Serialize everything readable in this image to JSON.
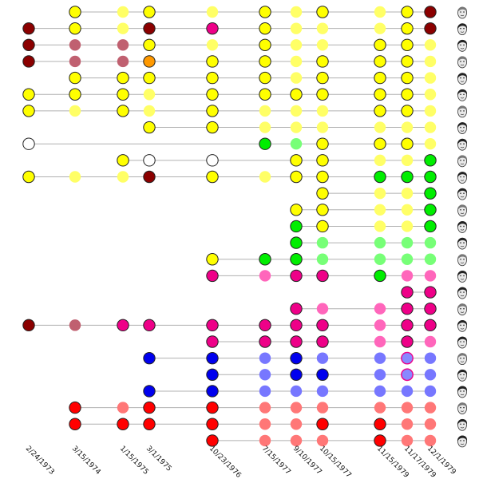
{
  "chart_data": {
    "type": "scatter",
    "dates": [
      "2/24/1973",
      "3/15/1974",
      "1/15/1975",
      "3/1/1975",
      "10/23/1976",
      "7/15/1977",
      "9/10/1977",
      "10/15/1977",
      "11/15/1979",
      "11/17/1979",
      "12/1/1979"
    ],
    "colors": {
      "Y": "#ffff00",
      "y": "#ffff66",
      "D": "#8b0000",
      "d": "#c06070",
      "O": "#ff9900",
      "W": "#ffffff",
      "G": "#00ee00",
      "g": "#77ff77",
      "M": "#ee0088",
      "m": "#ff66bb",
      "B": "#0000ee",
      "b": "#7777ff",
      "R": "#ff0000",
      "r": "#ff7777",
      "P": "#8888ff"
    },
    "outline_codes": [
      "Y",
      "D",
      "O",
      "W",
      "G",
      "M",
      "B",
      "R",
      "P"
    ],
    "rows": [
      [
        "-",
        "Y",
        "y",
        "Y",
        "y",
        "Y",
        "y",
        "Y",
        "y",
        "Y",
        "D"
      ],
      [
        "D",
        "Y",
        "y",
        "D",
        "M",
        "Y",
        "y",
        "y",
        "y",
        "Y",
        "D"
      ],
      [
        "D",
        "d",
        "d",
        "Y",
        "y",
        "Y",
        "y",
        "y",
        "Y",
        "Y",
        "y"
      ],
      [
        "D",
        "d",
        "d",
        "O",
        "Y",
        "Y",
        "y",
        "Y",
        "Y",
        "Y",
        "y"
      ],
      [
        "-",
        "Y",
        "Y",
        "Y",
        "Y",
        "Y",
        "y",
        "Y",
        "Y",
        "Y",
        "y"
      ],
      [
        "Y",
        "Y",
        "Y",
        "y",
        "Y",
        "Y",
        "Y",
        "Y",
        "Y",
        "Y",
        "y"
      ],
      [
        "Y",
        "y",
        "Y",
        "y",
        "Y",
        "y",
        "y",
        "y",
        "Y",
        "Y",
        "y"
      ],
      [
        "-",
        "-",
        "-",
        "Y",
        "Y",
        "y",
        "y",
        "y",
        "y",
        "y",
        "y"
      ],
      [
        "W",
        "-",
        "-",
        "-",
        "-",
        "G",
        "g",
        "Y",
        "Y",
        "Y",
        "y"
      ],
      [
        "-",
        "-",
        "Y",
        "W",
        "W",
        "-",
        "Y",
        "Y",
        "y",
        "y",
        "G"
      ],
      [
        "Y",
        "y",
        "y",
        "D",
        "Y",
        "y",
        "Y",
        "Y",
        "G",
        "G",
        "G"
      ],
      [
        "-",
        "-",
        "-",
        "-",
        "-",
        "-",
        "-",
        "Y",
        "y",
        "y",
        "G"
      ],
      [
        "-",
        "-",
        "-",
        "-",
        "-",
        "-",
        "Y",
        "Y",
        "y",
        "y",
        "G"
      ],
      [
        "-",
        "-",
        "-",
        "-",
        "-",
        "-",
        "G",
        "Y",
        "y",
        "y",
        "G"
      ],
      [
        "-",
        "-",
        "-",
        "-",
        "-",
        "-",
        "G",
        "g",
        "g",
        "g",
        "g"
      ],
      [
        "-",
        "-",
        "-",
        "-",
        "Y",
        "G",
        "G",
        "g",
        "g",
        "g",
        "g"
      ],
      [
        "-",
        "-",
        "-",
        "-",
        "M",
        "m",
        "M",
        "M",
        "G",
        "m",
        "m"
      ],
      [
        "-",
        "-",
        "-",
        "-",
        "-",
        "-",
        "-",
        "-",
        "-",
        "M",
        "M"
      ],
      [
        "-",
        "-",
        "-",
        "-",
        "-",
        "-",
        "M",
        "m",
        "m",
        "M",
        "M"
      ],
      [
        "D",
        "d",
        "M",
        "M",
        "M",
        "M",
        "M",
        "M",
        "m",
        "M",
        "M"
      ],
      [
        "-",
        "-",
        "-",
        "-",
        "M",
        "M",
        "M",
        "M",
        "m",
        "M",
        "m"
      ],
      [
        "-",
        "-",
        "-",
        "B",
        "B",
        "b",
        "B",
        "b",
        "b",
        "P",
        "b"
      ],
      [
        "-",
        "-",
        "-",
        "-",
        "B",
        "b",
        "B",
        "B",
        "b",
        "P",
        "b"
      ],
      [
        "-",
        "-",
        "-",
        "B",
        "B",
        "b",
        "b",
        "b",
        "b",
        "b",
        "b"
      ],
      [
        "-",
        "R",
        "r",
        "R",
        "R",
        "r",
        "r",
        "r",
        "r",
        "r",
        "r"
      ],
      [
        "-",
        "R",
        "R",
        "R",
        "R",
        "r",
        "r",
        "R",
        "R",
        "r",
        "r"
      ],
      [
        "-",
        "-",
        "-",
        "-",
        "R",
        "r",
        "r",
        "r",
        "R",
        "r",
        "r"
      ]
    ]
  }
}
